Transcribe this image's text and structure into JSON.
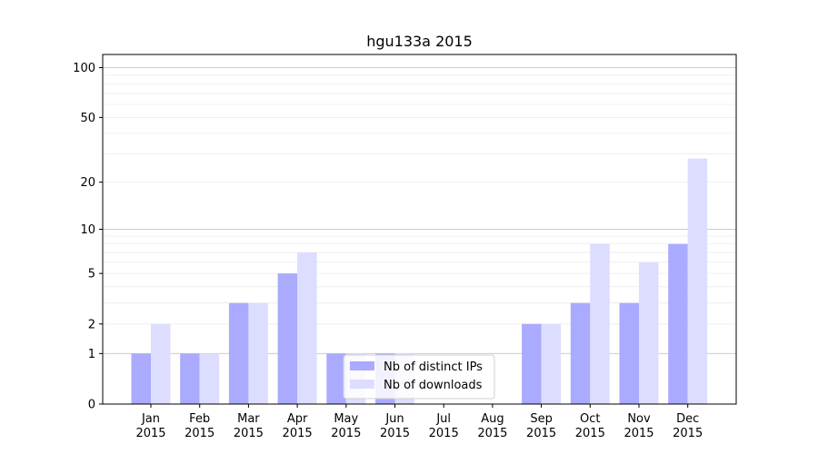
{
  "chart_data": {
    "type": "bar",
    "title": "hgu133a 2015",
    "categories": [
      [
        "Jan",
        "2015"
      ],
      [
        "Feb",
        "2015"
      ],
      [
        "Mar",
        "2015"
      ],
      [
        "Apr",
        "2015"
      ],
      [
        "May",
        "2015"
      ],
      [
        "Jun",
        "2015"
      ],
      [
        "Jul",
        "2015"
      ],
      [
        "Aug",
        "2015"
      ],
      [
        "Sep",
        "2015"
      ],
      [
        "Oct",
        "2015"
      ],
      [
        "Nov",
        "2015"
      ],
      [
        "Dec",
        "2015"
      ]
    ],
    "series": [
      {
        "name": "Nb of distinct IPs",
        "color": "#aaaaff",
        "values": [
          1,
          1,
          3,
          5,
          1,
          1,
          0,
          0,
          2,
          3,
          3,
          8
        ]
      },
      {
        "name": "Nb of downloads",
        "color": "#ddddff",
        "values": [
          2,
          1,
          3,
          7,
          1,
          1,
          0,
          0,
          2,
          8,
          6,
          28
        ]
      }
    ],
    "yscale": "log1p",
    "yticks": [
      0,
      1,
      2,
      5,
      10,
      20,
      50,
      100
    ],
    "yticklabels": [
      "0",
      "1",
      "2",
      "5",
      "10",
      "20",
      "50",
      "100"
    ],
    "ylim": [
      0,
      120
    ],
    "grid": true,
    "legend": "bottom-center"
  }
}
